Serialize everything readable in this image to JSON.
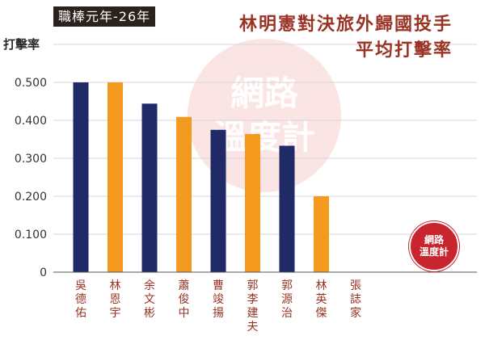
{
  "badge": "職棒元年-26年",
  "title_lines": [
    "林明憲對決旅外歸國投手",
    "平均打擊率"
  ],
  "watermark": [
    "網路",
    "溫度計"
  ],
  "logo": [
    "網路",
    "溫度計"
  ],
  "colors": {
    "navy": "#1f2a66",
    "orange": "#f39a1f",
    "title": "#9a3324",
    "grid": "#d7d7d7",
    "label": "#9a3324"
  },
  "chart_data": {
    "type": "bar",
    "ylabel": "打擊率",
    "ylim": [
      0,
      0.6
    ],
    "yticks": [
      "0",
      "0.100",
      "0.200",
      "0.300",
      "0.400",
      "0.500"
    ],
    "categories": [
      "吳德佑",
      "林恩宇",
      "余文彬",
      "蕭俊中",
      "曹竣揚",
      "郭李建夫",
      "郭源治",
      "林英傑",
      "張誌家"
    ],
    "values": [
      0.5,
      0.5,
      0.444,
      0.409,
      0.375,
      0.364,
      0.333,
      0.2,
      0
    ],
    "bar_colors": [
      "navy",
      "orange",
      "navy",
      "orange",
      "navy",
      "orange",
      "navy",
      "orange",
      "orange"
    ]
  }
}
